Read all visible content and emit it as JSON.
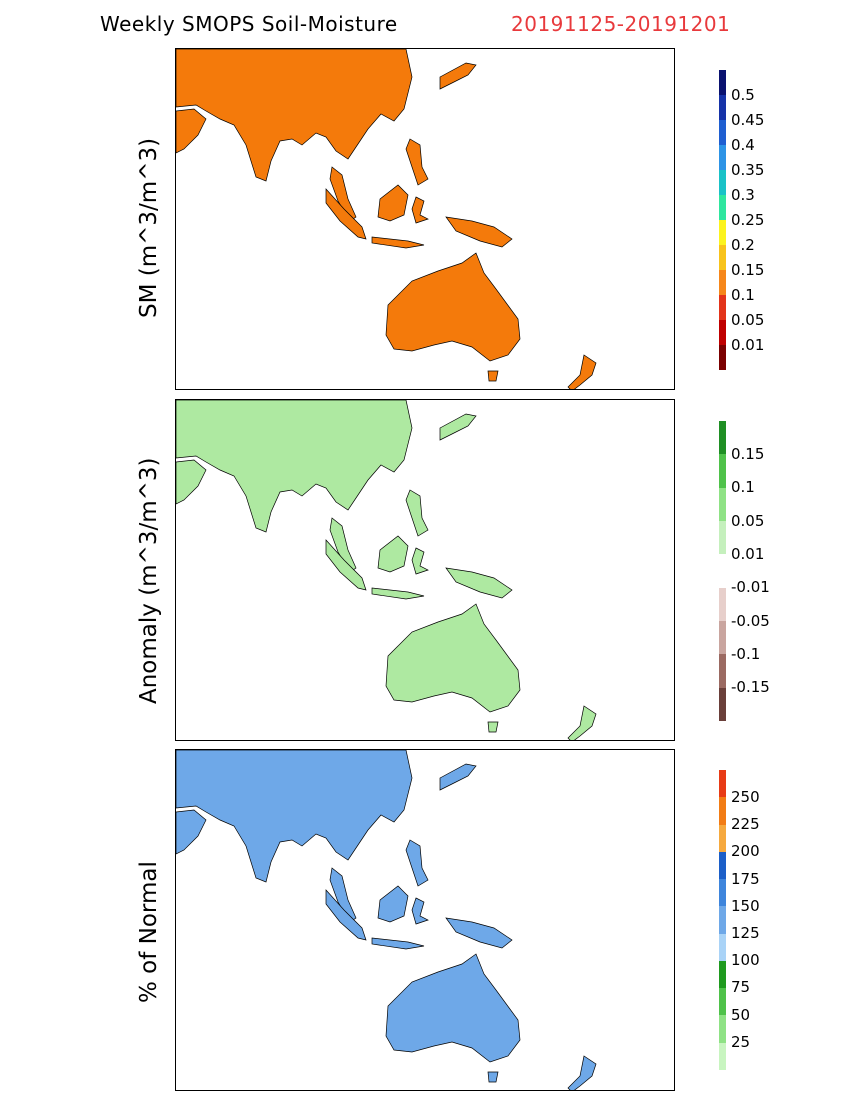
{
  "header": {
    "title": "Weekly SMOPS Soil-Moisture",
    "date_range": "20191125-20191201"
  },
  "panels": [
    {
      "id": "sm",
      "ylabel": "SM (m^3/m^3)",
      "land_color": "#f47a0b",
      "legend_colors": [
        "#7b0000",
        "#bf0000",
        "#e3341a",
        "#f6871a",
        "#f8c31b",
        "#fcf31e",
        "#2fe69f",
        "#1ac2c7",
        "#2d94e6",
        "#1f5fd1",
        "#1633a8",
        "#0a1270"
      ],
      "legend_labels": [
        "0.01",
        "0.05",
        "0.1",
        "0.15",
        "0.2",
        "0.25",
        "0.3",
        "0.35",
        "0.4",
        "0.45",
        "0.5"
      ]
    },
    {
      "id": "anomaly",
      "ylabel": "Anomaly (m^3/m^3)",
      "land_color": "#aee9a1",
      "legend_colors": [
        "#6a3f3a",
        "#9b6a62",
        "#c9a59f",
        "#e7cfcb",
        "#ffffff",
        "#c5f0bd",
        "#8fe285",
        "#4fc24a",
        "#1f8f24"
      ],
      "legend_labels": [
        "-0.15",
        "-0.1",
        "-0.05",
        "-0.01",
        "0.01",
        "0.05",
        "0.1",
        "0.15"
      ]
    },
    {
      "id": "percent",
      "ylabel": "% of Normal",
      "land_color": "#6ea8e8",
      "legend_colors": [
        "#c8f5c0",
        "#8fe285",
        "#4fc24a",
        "#1f9a1f",
        "#a9d3f7",
        "#6ea8e8",
        "#3e85dc",
        "#1c5fc8",
        "#f6a93e",
        "#f27c15",
        "#e83b16"
      ],
      "legend_labels": [
        "25",
        "50",
        "75",
        "100",
        "125",
        "150",
        "175",
        "200",
        "225",
        "250"
      ]
    }
  ]
}
